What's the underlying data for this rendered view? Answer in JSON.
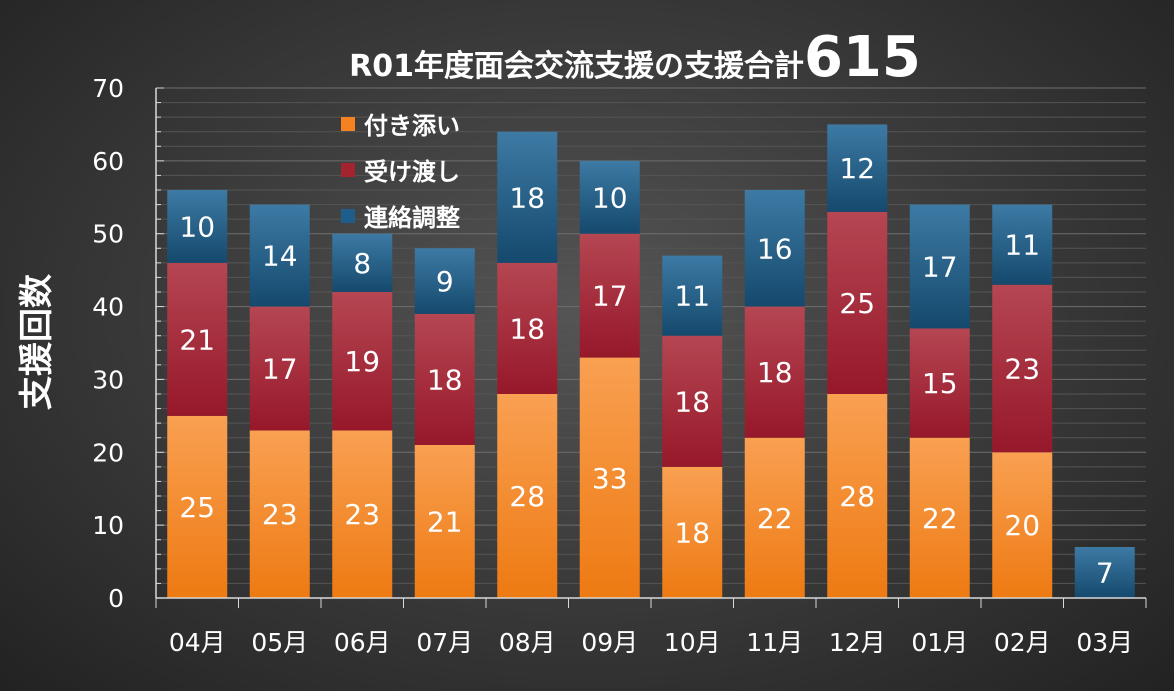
{
  "chart_data": {
    "type": "stacked-bar",
    "title": "R01年度面会交流支援の支援合計",
    "title_total": "615",
    "xlabel": "",
    "ylabel": "支援回数",
    "ylim": [
      0,
      70
    ],
    "yticks": [
      0,
      10,
      20,
      30,
      40,
      50,
      60,
      70
    ],
    "grid": true,
    "legend_position": "top-left",
    "categories": [
      "04月",
      "05月",
      "06月",
      "07月",
      "08月",
      "09月",
      "10月",
      "11月",
      "12月",
      "01月",
      "02月",
      "03月"
    ],
    "series": [
      {
        "name": "付き添い",
        "color": "#f58220",
        "values": [
          25,
          23,
          23,
          21,
          28,
          33,
          18,
          22,
          28,
          22,
          20,
          0
        ]
      },
      {
        "name": "受け渡し",
        "color": "#a3232f",
        "values": [
          21,
          17,
          19,
          18,
          18,
          17,
          18,
          18,
          25,
          15,
          23,
          0
        ]
      },
      {
        "name": "連絡調整",
        "color": "#1f5e8a",
        "values": [
          10,
          14,
          8,
          9,
          18,
          10,
          11,
          16,
          12,
          17,
          11,
          7
        ]
      }
    ]
  }
}
